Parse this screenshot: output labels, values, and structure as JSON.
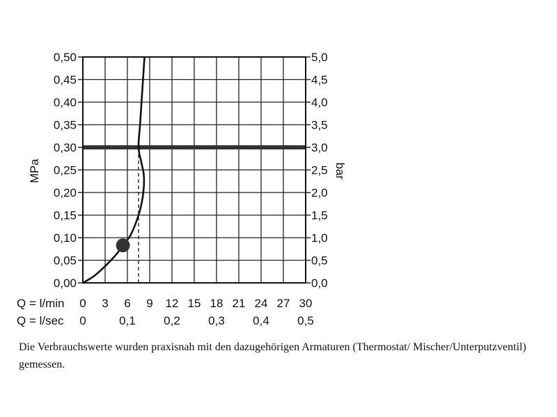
{
  "chart_data": {
    "type": "line",
    "left_axis": {
      "label": "MPa",
      "ticks": [
        "0,00",
        "0,05",
        "0,10",
        "0,15",
        "0,20",
        "0,25",
        "0,30",
        "0,35",
        "0,40",
        "0,45",
        "0,50"
      ],
      "range": [
        0,
        0.5
      ]
    },
    "right_axis": {
      "label": "bar",
      "ticks": [
        "0,0",
        "0,5",
        "1,0",
        "1,5",
        "2,0",
        "2,5",
        "3,0",
        "3,5",
        "4,0",
        "4,5",
        "5,0"
      ],
      "range": [
        0,
        5
      ]
    },
    "x_axis_primary": {
      "label": "Q = l/min",
      "ticks": [
        "0",
        "3",
        "6",
        "9",
        "12",
        "15",
        "18",
        "21",
        "24",
        "27",
        "30"
      ],
      "range": [
        0,
        30
      ]
    },
    "x_axis_secondary": {
      "label": "Q = l/sec",
      "ticks": [
        "0",
        "0,1",
        "0,2",
        "0,3",
        "0,4",
        "0,5"
      ]
    },
    "grid": true,
    "series": [
      {
        "points": [
          [
            0,
            0
          ],
          [
            1.5,
            0.015
          ],
          [
            3,
            0.037
          ],
          [
            4.5,
            0.063
          ],
          [
            5.4,
            0.083
          ],
          [
            6.4,
            0.105
          ],
          [
            7.3,
            0.14
          ],
          [
            7.9,
            0.175
          ],
          [
            8.2,
            0.21
          ],
          [
            8.2,
            0.24
          ],
          [
            7.9,
            0.265
          ],
          [
            7.5,
            0.3
          ],
          [
            7.7,
            0.35
          ],
          [
            7.9,
            0.4
          ],
          [
            8.1,
            0.45
          ],
          [
            8.3,
            0.5
          ]
        ]
      }
    ],
    "reference_line": {
      "y": 0.3
    },
    "marker": {
      "x": 5.4,
      "y": 0.083
    },
    "drop_line": {
      "x": 7.5,
      "from_y": 0,
      "to_y": 0.3
    }
  },
  "caption": "Die Verbrauchswerte wurden praxisnah mit den dazugehörigen Armaturen (Thermostat/ Mischer/Unterputzventil) gemessen."
}
